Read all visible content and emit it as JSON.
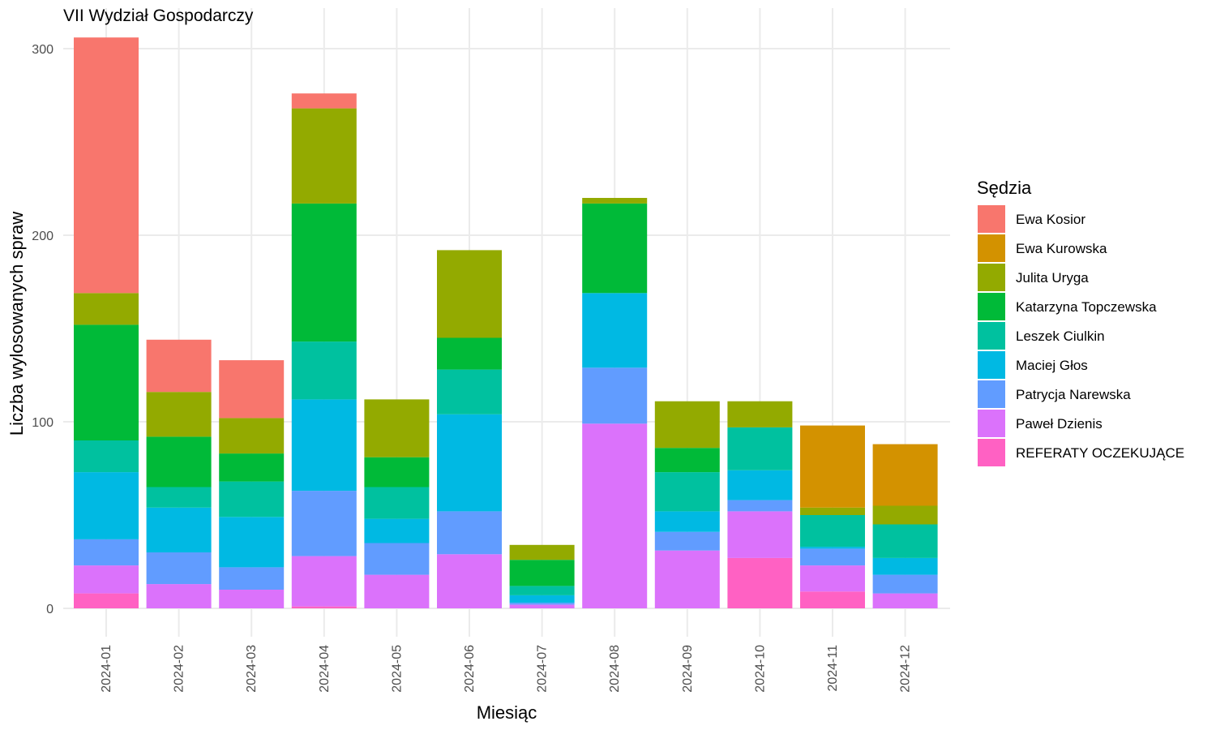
{
  "chart_data": {
    "type": "bar",
    "stacked": true,
    "title": "VII Wydział Gospodarczy",
    "xlabel": "Miesiąc",
    "ylabel": "Liczba wylosowanych spraw",
    "ylim": [
      0,
      310
    ],
    "yticks": [
      0,
      100,
      200,
      300
    ],
    "grid": true,
    "legend": {
      "title": "Sędzia",
      "position": "right"
    },
    "categories": [
      "2024-01",
      "2024-02",
      "2024-03",
      "2024-04",
      "2024-05",
      "2024-06",
      "2024-07",
      "2024-08",
      "2024-09",
      "2024-10",
      "2024-11",
      "2024-12"
    ],
    "series": [
      {
        "name": "REFERATY OCZEKUJĄCE",
        "color": "#FF61C3",
        "values": [
          8,
          0,
          0,
          1,
          0,
          0,
          0,
          0,
          0,
          27,
          9,
          0
        ]
      },
      {
        "name": "Paweł Dzienis",
        "color": "#DB72FB",
        "values": [
          15,
          13,
          10,
          27,
          18,
          29,
          2,
          99,
          31,
          25,
          14,
          8
        ]
      },
      {
        "name": "Patrycja Narewska",
        "color": "#619CFF",
        "values": [
          14,
          17,
          12,
          35,
          17,
          23,
          1,
          30,
          10,
          6,
          9,
          10
        ]
      },
      {
        "name": "Maciej Głos",
        "color": "#00B9E3",
        "values": [
          36,
          24,
          27,
          49,
          13,
          52,
          4,
          40,
          11,
          16,
          1,
          9
        ]
      },
      {
        "name": "Leszek Ciulkin",
        "color": "#00C19F",
        "values": [
          17,
          11,
          19,
          31,
          17,
          24,
          5,
          0,
          21,
          23,
          17,
          18
        ]
      },
      {
        "name": "Katarzyna Topczewska",
        "color": "#00BA38",
        "values": [
          62,
          27,
          15,
          74,
          16,
          17,
          14,
          48,
          13,
          0,
          0,
          0
        ]
      },
      {
        "name": "Julita Uryga",
        "color": "#93AA00",
        "values": [
          17,
          24,
          19,
          51,
          31,
          47,
          8,
          3,
          25,
          14,
          4,
          10
        ]
      },
      {
        "name": "Ewa Kurowska",
        "color": "#D39200",
        "values": [
          0,
          0,
          0,
          0,
          0,
          0,
          0,
          0,
          0,
          0,
          44,
          33
        ]
      },
      {
        "name": "Ewa Kosior",
        "color": "#F8766D",
        "values": [
          137,
          28,
          31,
          8,
          0,
          0,
          0,
          0,
          0,
          0,
          0,
          0
        ]
      }
    ],
    "legend_order": [
      "Ewa Kosior",
      "Ewa Kurowska",
      "Julita Uryga",
      "Katarzyna Topczewska",
      "Leszek Ciulkin",
      "Maciej Głos",
      "Patrycja Narewska",
      "Paweł Dzienis",
      "REFERATY OCZEKUJĄCE"
    ]
  }
}
